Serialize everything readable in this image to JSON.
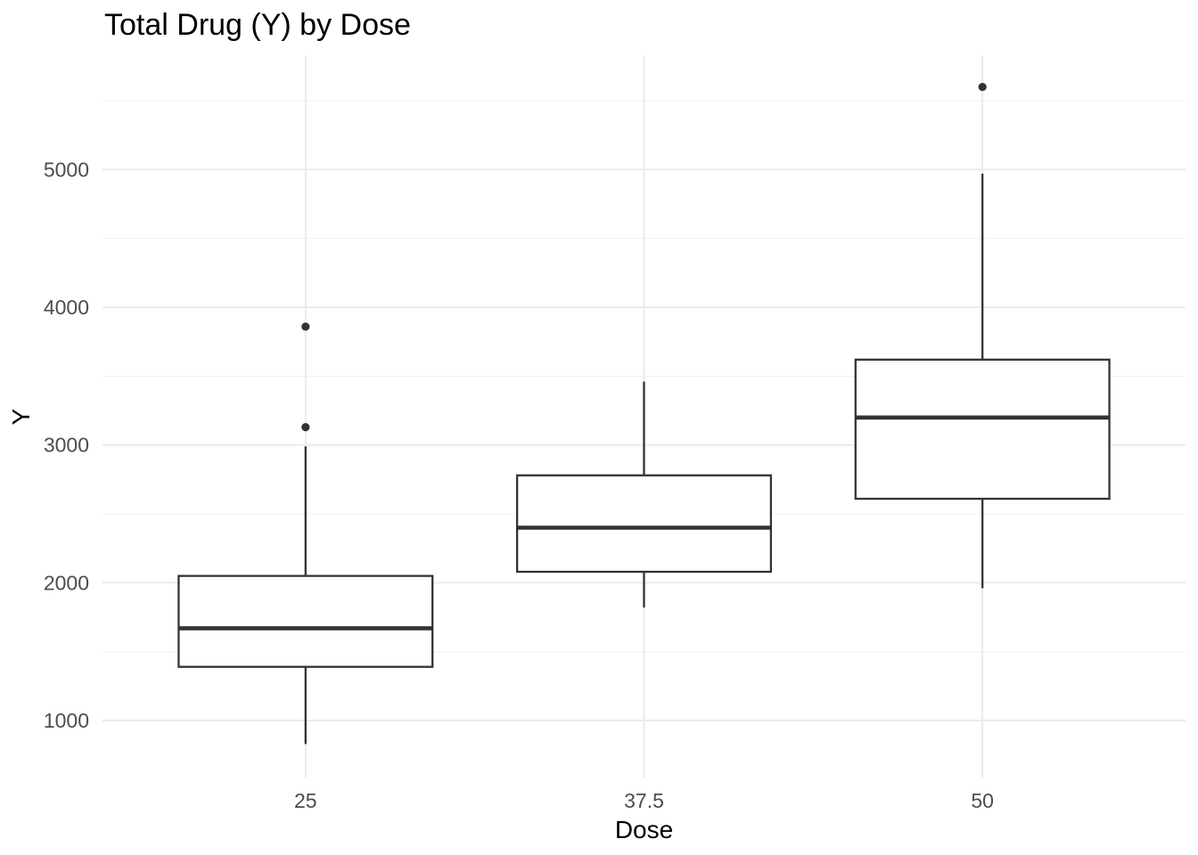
{
  "chart_data": {
    "type": "boxplot",
    "title": "Total Drug (Y) by Dose",
    "xlabel": "Dose",
    "ylabel": "Y",
    "categories": [
      "25",
      "37.5",
      "50"
    ],
    "series": [
      {
        "category": "25",
        "whisker_min": 830,
        "q1": 1390,
        "median": 1670,
        "q3": 2050,
        "whisker_max": 2990,
        "outliers": [
          3130,
          3860
        ]
      },
      {
        "category": "37.5",
        "whisker_min": 1820,
        "q1": 2080,
        "median": 2400,
        "q3": 2780,
        "whisker_max": 3460,
        "outliers": []
      },
      {
        "category": "50",
        "whisker_min": 1960,
        "q1": 2610,
        "median": 3200,
        "q3": 3620,
        "whisker_max": 4970,
        "outliers": [
          5600
        ]
      }
    ],
    "y_ticks": [
      1000,
      2000,
      3000,
      4000,
      5000
    ],
    "y_minor_gridlines": [
      1500,
      2500,
      3500,
      4500,
      5500
    ],
    "ylim": [
      580,
      5830
    ],
    "grid": true,
    "legend": false,
    "colors": {
      "box_stroke": "#333333",
      "box_fill": "#FFFFFF",
      "median": "#333333",
      "whisker": "#333333",
      "outlier": "#333333",
      "grid_major": "#EBEBEB",
      "grid_minor": "#F1F1F1",
      "tick_label": "#4D4D4D",
      "title": "#000000",
      "background": "#FFFFFF"
    }
  }
}
